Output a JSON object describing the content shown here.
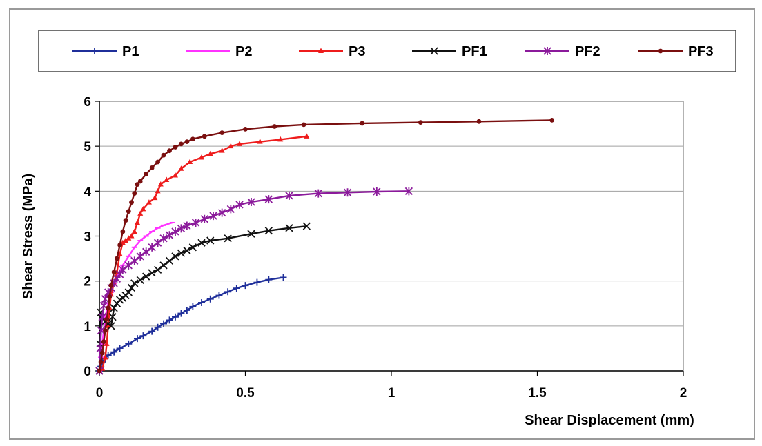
{
  "chart_data": {
    "type": "line",
    "title": "",
    "xlabel": "Shear Displacement (mm)",
    "ylabel": "Shear Stress (MPa)",
    "xlim": [
      0,
      2
    ],
    "ylim": [
      0,
      6
    ],
    "xticks": [
      "0",
      "0.5",
      "1",
      "1.5",
      "2"
    ],
    "yticks": [
      "0",
      "1",
      "2",
      "3",
      "4",
      "5",
      "6"
    ],
    "grid": "horizontal",
    "legend_position": "top",
    "series": [
      {
        "name": "P1",
        "color": "#1f2f9a",
        "marker": "plus",
        "points": [
          [
            0,
            0
          ],
          [
            0.005,
            0.1
          ],
          [
            0.01,
            0.2
          ],
          [
            0.02,
            0.28
          ],
          [
            0.03,
            0.35
          ],
          [
            0.05,
            0.42
          ],
          [
            0.07,
            0.5
          ],
          [
            0.1,
            0.6
          ],
          [
            0.13,
            0.72
          ],
          [
            0.15,
            0.78
          ],
          [
            0.18,
            0.88
          ],
          [
            0.2,
            0.97
          ],
          [
            0.22,
            1.05
          ],
          [
            0.24,
            1.13
          ],
          [
            0.26,
            1.2
          ],
          [
            0.28,
            1.28
          ],
          [
            0.3,
            1.35
          ],
          [
            0.32,
            1.43
          ],
          [
            0.35,
            1.52
          ],
          [
            0.38,
            1.6
          ],
          [
            0.41,
            1.68
          ],
          [
            0.44,
            1.76
          ],
          [
            0.47,
            1.84
          ],
          [
            0.5,
            1.9
          ],
          [
            0.54,
            1.97
          ],
          [
            0.58,
            2.03
          ],
          [
            0.63,
            2.08
          ]
        ]
      },
      {
        "name": "P2",
        "color": "#ff33ff",
        "marker": "dash",
        "points": [
          [
            0,
            0
          ],
          [
            0.005,
            0.3
          ],
          [
            0.01,
            0.6
          ],
          [
            0.015,
            0.9
          ],
          [
            0.02,
            1.2
          ],
          [
            0.03,
            1.5
          ],
          [
            0.04,
            1.75
          ],
          [
            0.05,
            1.95
          ],
          [
            0.06,
            2.1
          ],
          [
            0.08,
            2.35
          ],
          [
            0.1,
            2.55
          ],
          [
            0.12,
            2.75
          ],
          [
            0.14,
            2.9
          ],
          [
            0.16,
            3.0
          ],
          [
            0.18,
            3.1
          ],
          [
            0.2,
            3.18
          ],
          [
            0.22,
            3.24
          ],
          [
            0.25,
            3.3
          ]
        ]
      },
      {
        "name": "P3",
        "color": "#ee1c1c",
        "marker": "triangle",
        "points": [
          [
            0,
            0
          ],
          [
            0.01,
            0.05
          ],
          [
            0.02,
            0.3
          ],
          [
            0.025,
            0.6
          ],
          [
            0.03,
            1.0
          ],
          [
            0.035,
            1.4
          ],
          [
            0.04,
            1.7
          ],
          [
            0.05,
            1.95
          ],
          [
            0.06,
            2.2
          ],
          [
            0.07,
            2.6
          ],
          [
            0.08,
            2.85
          ],
          [
            0.09,
            2.9
          ],
          [
            0.1,
            2.95
          ],
          [
            0.11,
            3.0
          ],
          [
            0.12,
            3.1
          ],
          [
            0.13,
            3.3
          ],
          [
            0.14,
            3.5
          ],
          [
            0.15,
            3.6
          ],
          [
            0.17,
            3.75
          ],
          [
            0.19,
            3.85
          ],
          [
            0.2,
            4.0
          ],
          [
            0.21,
            4.15
          ],
          [
            0.23,
            4.25
          ],
          [
            0.26,
            4.35
          ],
          [
            0.28,
            4.5
          ],
          [
            0.31,
            4.65
          ],
          [
            0.35,
            4.75
          ],
          [
            0.38,
            4.83
          ],
          [
            0.42,
            4.9
          ],
          [
            0.45,
            5.0
          ],
          [
            0.48,
            5.05
          ],
          [
            0.55,
            5.1
          ],
          [
            0.62,
            5.15
          ],
          [
            0.71,
            5.22
          ]
        ]
      },
      {
        "name": "PF1",
        "color": "#111111",
        "marker": "x",
        "points": [
          [
            0,
            0
          ],
          [
            0.002,
            0.6
          ],
          [
            0.005,
            1.3
          ],
          [
            0.01,
            1.2
          ],
          [
            0.02,
            1.1
          ],
          [
            0.03,
            1.05
          ],
          [
            0.04,
            1.0
          ],
          [
            0.045,
            1.2
          ],
          [
            0.05,
            1.4
          ],
          [
            0.06,
            1.5
          ],
          [
            0.07,
            1.58
          ],
          [
            0.08,
            1.62
          ],
          [
            0.09,
            1.68
          ],
          [
            0.1,
            1.75
          ],
          [
            0.11,
            1.85
          ],
          [
            0.12,
            1.95
          ],
          [
            0.14,
            2.02
          ],
          [
            0.16,
            2.1
          ],
          [
            0.18,
            2.18
          ],
          [
            0.2,
            2.25
          ],
          [
            0.22,
            2.35
          ],
          [
            0.24,
            2.45
          ],
          [
            0.26,
            2.55
          ],
          [
            0.28,
            2.62
          ],
          [
            0.3,
            2.68
          ],
          [
            0.32,
            2.75
          ],
          [
            0.35,
            2.85
          ],
          [
            0.38,
            2.9
          ],
          [
            0.44,
            2.95
          ],
          [
            0.52,
            3.05
          ],
          [
            0.58,
            3.12
          ],
          [
            0.65,
            3.18
          ],
          [
            0.71,
            3.22
          ]
        ]
      },
      {
        "name": "PF2",
        "color": "#8b1a9b",
        "marker": "star",
        "points": [
          [
            0,
            0
          ],
          [
            0.003,
            0.5
          ],
          [
            0.006,
            0.9
          ],
          [
            0.01,
            1.2
          ],
          [
            0.015,
            1.45
          ],
          [
            0.02,
            1.6
          ],
          [
            0.03,
            1.75
          ],
          [
            0.04,
            1.85
          ],
          [
            0.05,
            1.95
          ],
          [
            0.06,
            2.05
          ],
          [
            0.07,
            2.15
          ],
          [
            0.08,
            2.25
          ],
          [
            0.1,
            2.35
          ],
          [
            0.12,
            2.45
          ],
          [
            0.14,
            2.55
          ],
          [
            0.16,
            2.65
          ],
          [
            0.18,
            2.75
          ],
          [
            0.2,
            2.85
          ],
          [
            0.22,
            2.95
          ],
          [
            0.24,
            3.02
          ],
          [
            0.26,
            3.1
          ],
          [
            0.28,
            3.17
          ],
          [
            0.3,
            3.23
          ],
          [
            0.33,
            3.3
          ],
          [
            0.36,
            3.38
          ],
          [
            0.39,
            3.45
          ],
          [
            0.42,
            3.52
          ],
          [
            0.45,
            3.6
          ],
          [
            0.48,
            3.7
          ],
          [
            0.52,
            3.76
          ],
          [
            0.58,
            3.82
          ],
          [
            0.65,
            3.9
          ],
          [
            0.75,
            3.95
          ],
          [
            0.85,
            3.97
          ],
          [
            0.95,
            3.99
          ],
          [
            1.06,
            4.0
          ]
        ]
      },
      {
        "name": "PF3",
        "color": "#7a0f0f",
        "marker": "circle",
        "points": [
          [
            0,
            0
          ],
          [
            0.005,
            0.2
          ],
          [
            0.01,
            0.4
          ],
          [
            0.015,
            0.65
          ],
          [
            0.02,
            0.9
          ],
          [
            0.025,
            1.15
          ],
          [
            0.03,
            1.4
          ],
          [
            0.035,
            1.65
          ],
          [
            0.04,
            1.9
          ],
          [
            0.05,
            2.2
          ],
          [
            0.06,
            2.5
          ],
          [
            0.07,
            2.8
          ],
          [
            0.08,
            3.1
          ],
          [
            0.09,
            3.35
          ],
          [
            0.1,
            3.55
          ],
          [
            0.11,
            3.75
          ],
          [
            0.12,
            3.95
          ],
          [
            0.13,
            4.15
          ],
          [
            0.14,
            4.22
          ],
          [
            0.16,
            4.38
          ],
          [
            0.18,
            4.52
          ],
          [
            0.2,
            4.65
          ],
          [
            0.22,
            4.8
          ],
          [
            0.24,
            4.9
          ],
          [
            0.26,
            4.98
          ],
          [
            0.28,
            5.05
          ],
          [
            0.3,
            5.1
          ],
          [
            0.32,
            5.16
          ],
          [
            0.36,
            5.22
          ],
          [
            0.42,
            5.3
          ],
          [
            0.5,
            5.38
          ],
          [
            0.6,
            5.44
          ],
          [
            0.7,
            5.48
          ],
          [
            0.9,
            5.51
          ],
          [
            1.1,
            5.53
          ],
          [
            1.3,
            5.55
          ],
          [
            1.55,
            5.58
          ]
        ]
      }
    ]
  }
}
